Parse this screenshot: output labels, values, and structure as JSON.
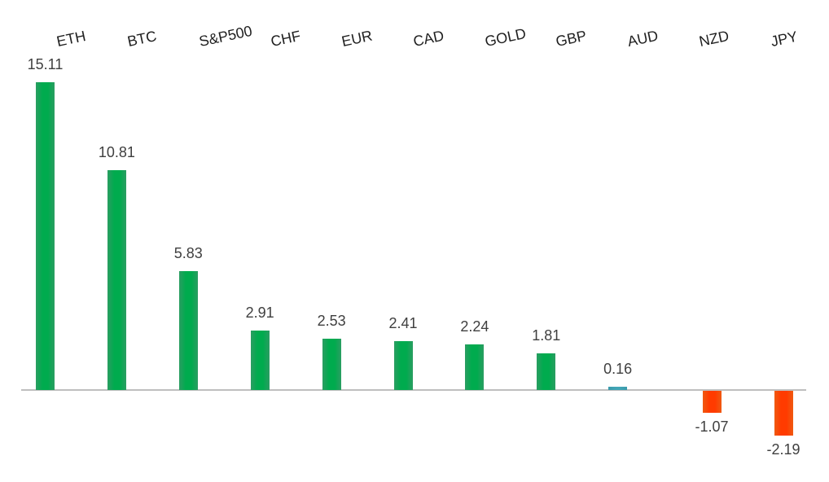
{
  "chart_data": {
    "type": "bar",
    "title": "",
    "xlabel": "",
    "ylabel": "",
    "categories": [
      "ETH",
      "BTC",
      "S&P500",
      "CHF",
      "EUR",
      "CAD",
      "GOLD",
      "GBP",
      "AUD",
      "NZD",
      "JPY"
    ],
    "values": [
      15.11,
      10.81,
      5.83,
      2.91,
      2.53,
      2.41,
      2.24,
      1.81,
      0.16,
      -1.07,
      -2.19
    ],
    "value_labels": [
      "15.11",
      "10.81",
      "5.83",
      "2.91",
      "2.53",
      "2.41",
      "2.24",
      "1.81",
      "0.16",
      "-1.07",
      "-2.19"
    ],
    "bar_color_keys": [
      "positive",
      "positive",
      "positive",
      "positive",
      "positive",
      "positive",
      "positive",
      "positive",
      "small_positive",
      "negative",
      "negative"
    ],
    "palette": {
      "positive": "#00AB4E",
      "small_positive": "#41A5B6",
      "negative": "#FF3B00"
    },
    "axis_line_color": "#BFBFBF",
    "value_label_color": "#3F3F3F",
    "category_label_color": "#1F1F1F",
    "background_color": "#FFFFFF",
    "baseline": 0,
    "ylim": [
      -3,
      16
    ],
    "grid": false,
    "legend": false,
    "category_label_position": "top",
    "category_label_rotation_deg": -12,
    "value_label_position": "outside-end"
  }
}
